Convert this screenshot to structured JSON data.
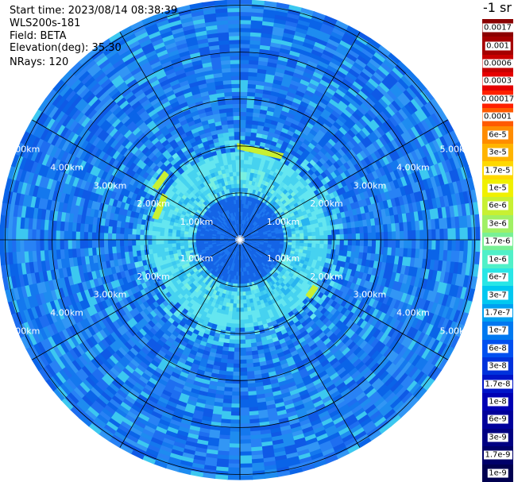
{
  "info": {
    "start_time": "Start time: 2023/08/14 08:38:39",
    "instrument": "WLS200s-181",
    "field": "Field: BETA",
    "elevation": "Elevation(deg): 35.30",
    "nrays": "NRays: 120"
  },
  "colorbar": {
    "unit": "-1 sr",
    "labels": [
      "0.0017",
      "0.001",
      "0.0006",
      "0.0003",
      "0.00017",
      "0.0001",
      "6e-5",
      "3e-5",
      "1.7e-5",
      "1e-5",
      "6e-6",
      "3e-6",
      "1.7e-6",
      "1e-6",
      "6e-7",
      "3e-7",
      "1.7e-7",
      "1e-7",
      "6e-8",
      "3e-8",
      "1.7e-8",
      "1e-8",
      "6e-9",
      "3e-9",
      "1.7e-9",
      "1e-9"
    ],
    "colors": [
      "#8b0000",
      "#a50000",
      "#c80000",
      "#e60000",
      "#ff2000",
      "#ff5a00",
      "#ff8c00",
      "#ffb400",
      "#ffd800",
      "#f0f000",
      "#c8f032",
      "#a0f064",
      "#78f096",
      "#50f0c8",
      "#28e6e6",
      "#00c8f0",
      "#00a0f0",
      "#0078f0",
      "#0050f0",
      "#0032dc",
      "#0014c8",
      "#0000b4",
      "#00009b",
      "#000082",
      "#000069",
      "#000050"
    ]
  },
  "ring_labels": [
    "1.00km",
    "2.00km",
    "3.00km",
    "4.00km",
    "5.00km"
  ],
  "range_max_km": 5.0,
  "spokes_deg": [
    0,
    30,
    60,
    90,
    120,
    150
  ],
  "rays": 120
}
